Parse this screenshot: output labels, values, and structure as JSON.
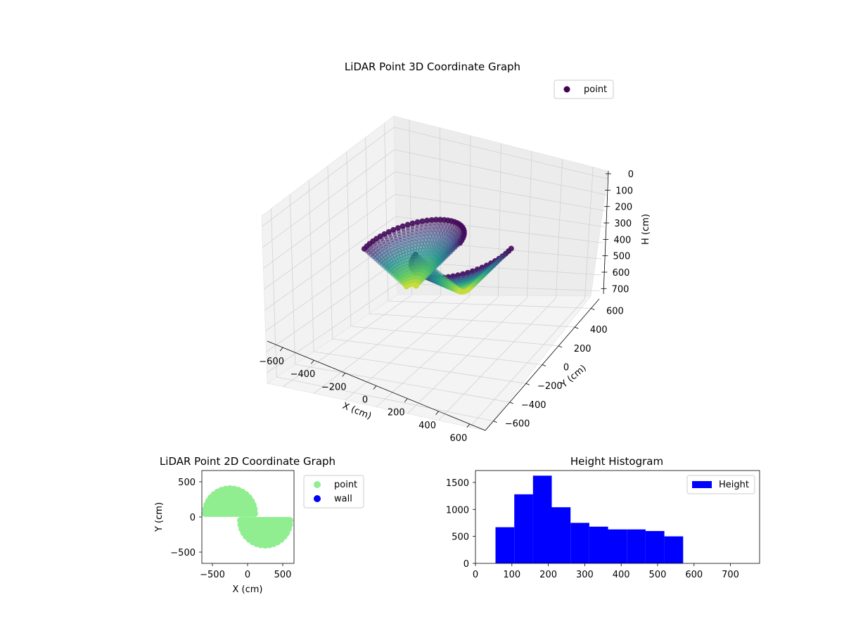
{
  "colors": {
    "viridis": [
      "#440154",
      "#3b528b",
      "#21918c",
      "#5ec962",
      "#fde725"
    ],
    "point_2d": "#90ee90",
    "wall_2d": "#0000ff",
    "histogram": "#0000ff"
  },
  "chart_data": [
    {
      "type": "scatter",
      "projection": "3d",
      "title": "LiDAR Point 3D Coordinate Graph",
      "xlabel": "X (cm)",
      "ylabel": "Y (cm)",
      "zlabel": "H (cm)",
      "xlim": [
        -650,
        650
      ],
      "ylim": [
        -650,
        650
      ],
      "zlim": [
        750,
        0
      ],
      "z_inverted": true,
      "x_ticks": [
        "−600",
        "−400",
        "−200",
        "0",
        "200",
        "400",
        "600"
      ],
      "y_ticks": [
        "−600",
        "−400",
        "−200",
        "0",
        "200",
        "400",
        "600"
      ],
      "z_ticks": [
        "0",
        "100",
        "200",
        "300",
        "400",
        "500",
        "600",
        "700"
      ],
      "legend": {
        "position": "top-right",
        "entries": [
          "point"
        ]
      },
      "colormap": "viridis",
      "series": [
        {
          "name": "point",
          "shape": "S-shaped band of two half-bowls; height grows toward center",
          "x_range": [
            -500,
            550
          ],
          "y_range": [
            -450,
            450
          ],
          "h_range": [
            0,
            700
          ]
        }
      ],
      "grid": true
    },
    {
      "type": "scatter",
      "title": "LiDAR Point 2D Coordinate Graph",
      "xlabel": "X (cm)",
      "ylabel": "Y (cm)",
      "xlim": [
        -650,
        650
      ],
      "ylim": [
        -650,
        650
      ],
      "x_ticks": [
        "−500",
        "0",
        "500"
      ],
      "y_ticks": [
        "500",
        "0",
        "−500"
      ],
      "legend": {
        "position": "outside-right",
        "entries": [
          "point",
          "wall"
        ]
      },
      "series": [
        {
          "name": "point",
          "region": "S-shaped footprint of two half-disks",
          "upper_left_lobe_center": [
            -250,
            50
          ],
          "lower_right_lobe_center": [
            250,
            -50
          ],
          "radius": 350
        },
        {
          "name": "wall",
          "points": []
        }
      ],
      "grid": false
    },
    {
      "type": "bar",
      "subtype": "histogram",
      "title": "Height Histogram",
      "xlabel": "",
      "ylabel": "",
      "xlim": [
        0,
        780
      ],
      "ylim": [
        0,
        1720
      ],
      "x_ticks": [
        "0",
        "100",
        "200",
        "300",
        "400",
        "500",
        "600",
        "700"
      ],
      "y_ticks": [
        "0",
        "500",
        "1000",
        "1500"
      ],
      "legend": {
        "position": "top-right",
        "entries": [
          "Height"
        ]
      },
      "bin_edges": [
        55,
        106.5,
        158,
        209.5,
        261,
        312.5,
        364,
        415.5,
        467,
        518.5,
        570
      ],
      "series": [
        {
          "name": "Height",
          "values": [
            670,
            1280,
            1625,
            1040,
            750,
            680,
            630,
            630,
            600,
            500
          ]
        }
      ],
      "grid": false
    }
  ]
}
